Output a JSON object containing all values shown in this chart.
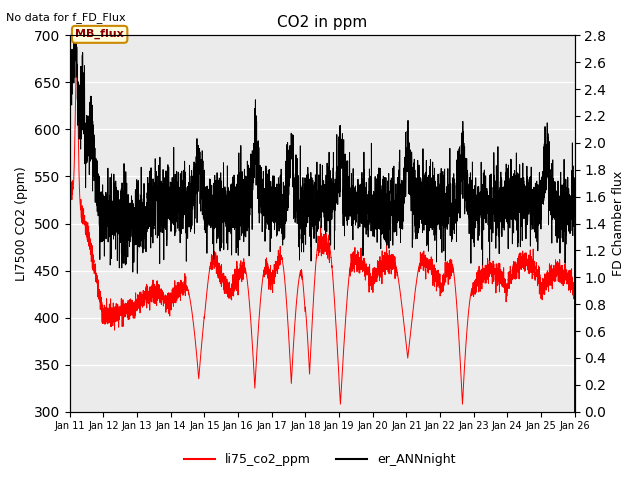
{
  "title": "CO2 in ppm",
  "ylabel_left": "LI7500 CO2 (ppm)",
  "ylabel_right": "FD Chamber flux",
  "ylim_left": [
    300,
    700
  ],
  "ylim_right": [
    0.0,
    2.8
  ],
  "xlim": [
    0,
    360
  ],
  "xtick_labels": [
    "Jan 11",
    "Jan 12",
    "Jan 13",
    "Jan 14",
    "Jan 15",
    "Jan 16",
    "Jan 17",
    "Jan 18",
    "Jan 19",
    "Jan 20",
    "Jan 21",
    "Jan 22",
    "Jan 23",
    "Jan 24",
    "Jan 25",
    "Jan 26"
  ],
  "no_data_text": "No data for f_FD_Flux",
  "mb_flux_label": "MB_flux",
  "legend_labels": [
    "li75_co2_ppm",
    "er_ANNnight"
  ],
  "line_colors": [
    "red",
    "black"
  ],
  "bg_color": "#ebebeb",
  "n_points": 4320,
  "seed": 7
}
